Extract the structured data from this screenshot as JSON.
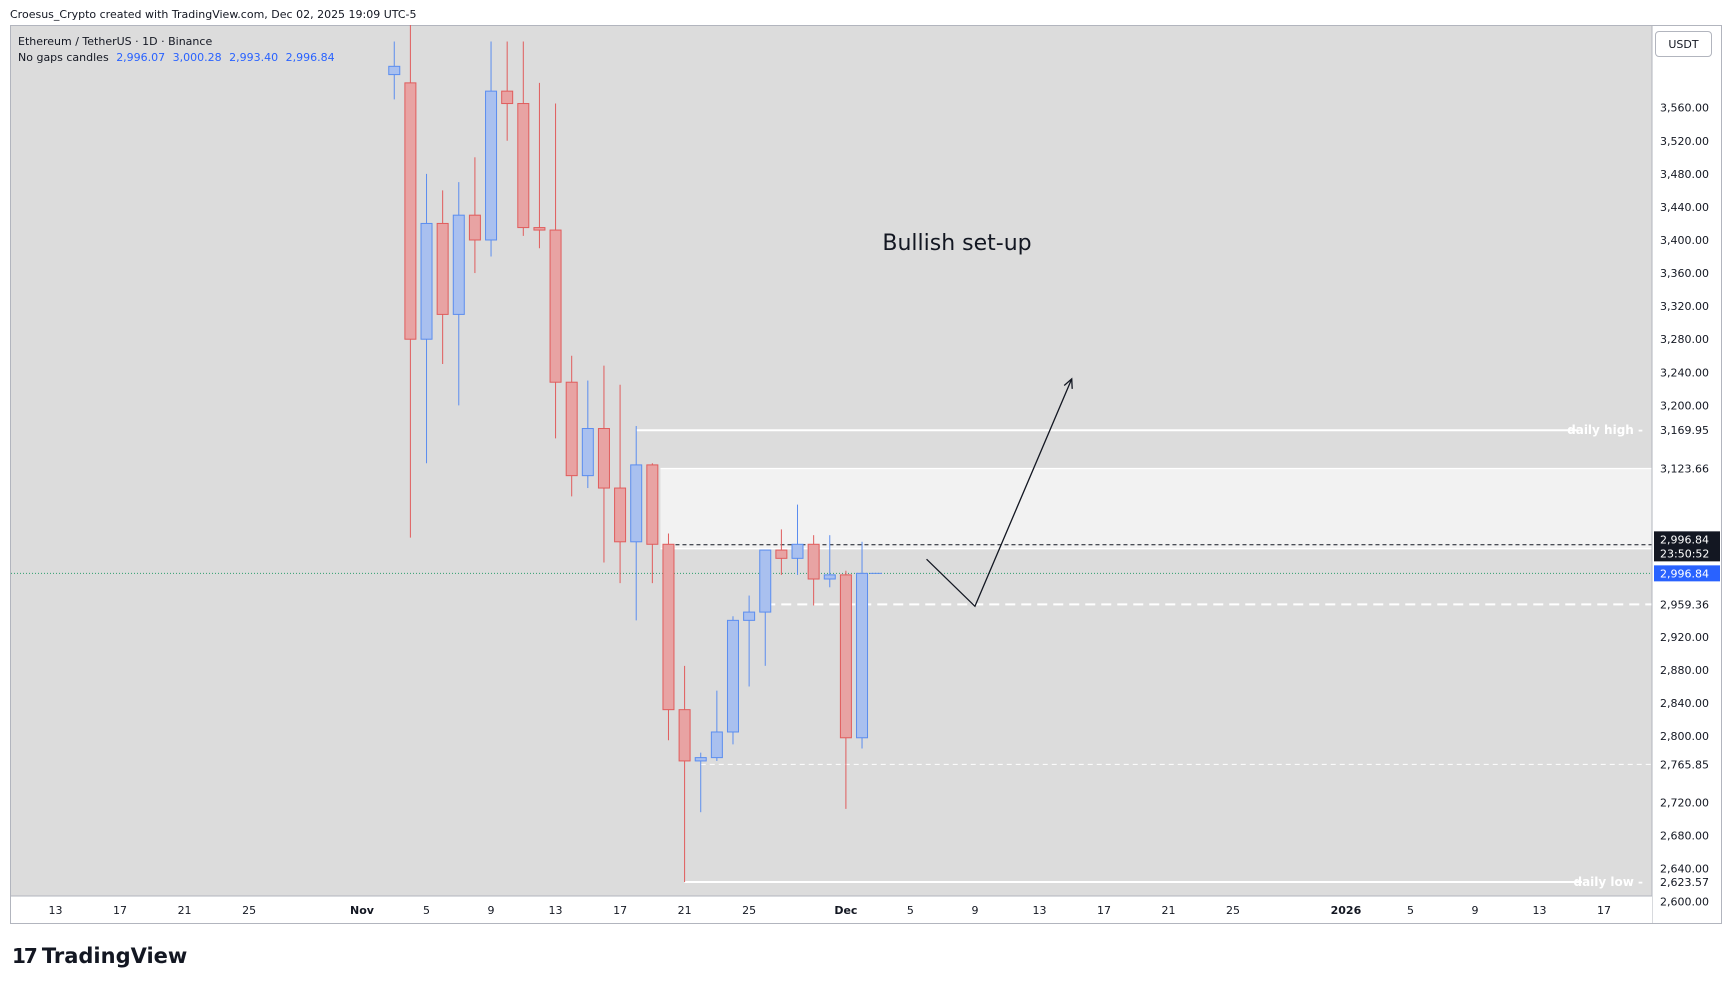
{
  "header": {
    "credit": "Croesus_Crypto created with TradingView.com, Dec 02, 2025 19:09 UTC-5"
  },
  "legend": {
    "symbol": "Ethereum / TetherUS · 1D · Binance",
    "candles_label": "No gaps candles",
    "ohlc": [
      "2,996.07",
      "3,000.28",
      "2,993.40",
      "2,996.84"
    ]
  },
  "currency_button": "USDT",
  "footer": {
    "logo_mark": "17",
    "brand": "TradingView"
  },
  "chart_data": {
    "type": "candlestick",
    "title": "",
    "annotation_text": "Bullish set-up",
    "colors": {
      "up": "#5b8def",
      "up_fill": "#a9c0ef",
      "down": "#e05c5c",
      "down_fill": "#e8a3a3",
      "background": "#dcdcdc",
      "last_price": "#2962ff"
    },
    "y_ticks": [
      "3,560.00",
      "3,520.00",
      "3,480.00",
      "3,440.00",
      "3,400.00",
      "3,360.00",
      "3,320.00",
      "3,280.00",
      "3,240.00",
      "3,200.00",
      "2,920.00",
      "2,880.00",
      "2,840.00",
      "2,800.00",
      "2,720.00",
      "2,680.00",
      "2,640.00",
      "2,600.00"
    ],
    "y_tick_values": [
      3560,
      3520,
      3480,
      3440,
      3400,
      3360,
      3320,
      3280,
      3240,
      3200,
      2920,
      2880,
      2840,
      2800,
      2720,
      2680,
      2640,
      2600
    ],
    "x_ticks": [
      {
        "label": "13",
        "date": "2025-10-13"
      },
      {
        "label": "17",
        "date": "2025-10-17"
      },
      {
        "label": "21",
        "date": "2025-10-21"
      },
      {
        "label": "25",
        "date": "2025-10-25"
      },
      {
        "label": "Nov",
        "date": "2025-11-01"
      },
      {
        "label": "5",
        "date": "2025-11-05"
      },
      {
        "label": "9",
        "date": "2025-11-09"
      },
      {
        "label": "13",
        "date": "2025-11-13"
      },
      {
        "label": "17",
        "date": "2025-11-17"
      },
      {
        "label": "21",
        "date": "2025-11-21"
      },
      {
        "label": "25",
        "date": "2025-11-25"
      },
      {
        "label": "Dec",
        "date": "2025-12-01"
      },
      {
        "label": "5",
        "date": "2025-12-05"
      },
      {
        "label": "9",
        "date": "2025-12-09"
      },
      {
        "label": "13",
        "date": "2025-12-13"
      },
      {
        "label": "17",
        "date": "2025-12-17"
      },
      {
        "label": "21",
        "date": "2025-12-21"
      },
      {
        "label": "25",
        "date": "2025-12-25"
      },
      {
        "label": "2026",
        "date": "2026-01-01"
      },
      {
        "label": "5",
        "date": "2026-01-05"
      },
      {
        "label": "9",
        "date": "2026-01-09"
      },
      {
        "label": "13",
        "date": "2026-01-13"
      },
      {
        "label": "17",
        "date": "2026-01-17"
      }
    ],
    "candles": [
      {
        "date": "2025-11-03",
        "open": 3600,
        "high": 3640,
        "low": 3570,
        "close": 3610
      },
      {
        "date": "2025-11-04",
        "open": 3590,
        "high": 3660,
        "low": 3040,
        "close": 3280
      },
      {
        "date": "2025-11-05",
        "open": 3280,
        "high": 3480,
        "low": 3130,
        "close": 3420
      },
      {
        "date": "2025-11-06",
        "open": 3420,
        "high": 3460,
        "low": 3250,
        "close": 3310
      },
      {
        "date": "2025-11-07",
        "open": 3310,
        "high": 3470,
        "low": 3200,
        "close": 3430
      },
      {
        "date": "2025-11-08",
        "open": 3430,
        "high": 3500,
        "low": 3360,
        "close": 3400
      },
      {
        "date": "2025-11-09",
        "open": 3400,
        "high": 3640,
        "low": 3380,
        "close": 3580
      },
      {
        "date": "2025-11-10",
        "open": 3580,
        "high": 3640,
        "low": 3520,
        "close": 3565
      },
      {
        "date": "2025-11-11",
        "open": 3565,
        "high": 3640,
        "low": 3405,
        "close": 3415
      },
      {
        "date": "2025-11-12",
        "open": 3415,
        "high": 3590,
        "low": 3390,
        "close": 3412
      },
      {
        "date": "2025-11-13",
        "open": 3412,
        "high": 3565,
        "low": 3160,
        "close": 3228
      },
      {
        "date": "2025-11-14",
        "open": 3228,
        "high": 3260,
        "low": 3090,
        "close": 3115
      },
      {
        "date": "2025-11-15",
        "open": 3115,
        "high": 3230,
        "low": 3100,
        "close": 3172
      },
      {
        "date": "2025-11-16",
        "open": 3172,
        "high": 3248,
        "low": 3010,
        "close": 3100
      },
      {
        "date": "2025-11-17",
        "open": 3100,
        "high": 3225,
        "low": 2985,
        "close": 3035
      },
      {
        "date": "2025-11-18",
        "open": 3035,
        "high": 3175,
        "low": 2940,
        "close": 3128
      },
      {
        "date": "2025-11-19",
        "open": 3128,
        "high": 3130,
        "low": 2985,
        "close": 3032
      },
      {
        "date": "2025-11-20",
        "open": 3032,
        "high": 3045,
        "low": 2795,
        "close": 2832
      },
      {
        "date": "2025-11-21",
        "open": 2832,
        "high": 2885,
        "low": 2623.57,
        "close": 2770
      },
      {
        "date": "2025-11-22",
        "open": 2770,
        "high": 2780,
        "low": 2708,
        "close": 2774
      },
      {
        "date": "2025-11-23",
        "open": 2774,
        "high": 2855,
        "low": 2770,
        "close": 2805
      },
      {
        "date": "2025-11-24",
        "open": 2805,
        "high": 2945,
        "low": 2790,
        "close": 2940
      },
      {
        "date": "2025-11-25",
        "open": 2940,
        "high": 2970,
        "low": 2860,
        "close": 2950
      },
      {
        "date": "2025-11-26",
        "open": 2950,
        "high": 3022,
        "low": 2885,
        "close": 3025
      },
      {
        "date": "2025-11-27",
        "open": 3025,
        "high": 3050,
        "low": 2995,
        "close": 3015
      },
      {
        "date": "2025-11-28",
        "open": 3015,
        "high": 3080,
        "low": 2995,
        "close": 3032
      },
      {
        "date": "2025-11-29",
        "open": 3032,
        "high": 3043,
        "low": 2958,
        "close": 2990
      },
      {
        "date": "2025-11-30",
        "open": 2990,
        "high": 3043,
        "low": 2980,
        "close": 2995
      },
      {
        "date": "2025-12-01",
        "open": 2995,
        "high": 3000,
        "low": 2712,
        "close": 2798
      },
      {
        "date": "2025-12-02",
        "open": 2798,
        "high": 3035,
        "low": 2785,
        "close": 2996.84
      }
    ],
    "levels": [
      {
        "name": "daily high",
        "value": 3169.95,
        "label": "3,169.95",
        "style": "solid-white"
      },
      {
        "name": "zone-top",
        "value": 3123.66,
        "label": "3,123.66",
        "style": "zone-edge"
      },
      {
        "name": "dashed-mid",
        "value": 3031.44,
        "label": "3,031.44",
        "style": "dashed-black"
      },
      {
        "name": "zone-bottom",
        "value": 3026.56,
        "label": "3,026.56",
        "style": "zone-edge"
      },
      {
        "name": "support",
        "value": 2959.36,
        "label": "2,959.36",
        "style": "dashed-white"
      },
      {
        "name": "prior-low",
        "value": 2765.85,
        "label": "2,765.85",
        "style": "dashed-white-thin"
      },
      {
        "name": "daily low",
        "value": 2623.57,
        "label": "2,623.57",
        "style": "solid-white"
      }
    ],
    "level_texts": {
      "daily_high": "daily high",
      "daily_low": "daily low"
    },
    "last_price": {
      "value": 2996.84,
      "label": "2,996.84",
      "countdown": "23:50:52"
    },
    "projection_path": [
      {
        "date": "2025-12-06",
        "price": 3014
      },
      {
        "date": "2025-12-09",
        "price": 2957
      },
      {
        "date": "2025-12-15",
        "price": 3232
      }
    ]
  }
}
